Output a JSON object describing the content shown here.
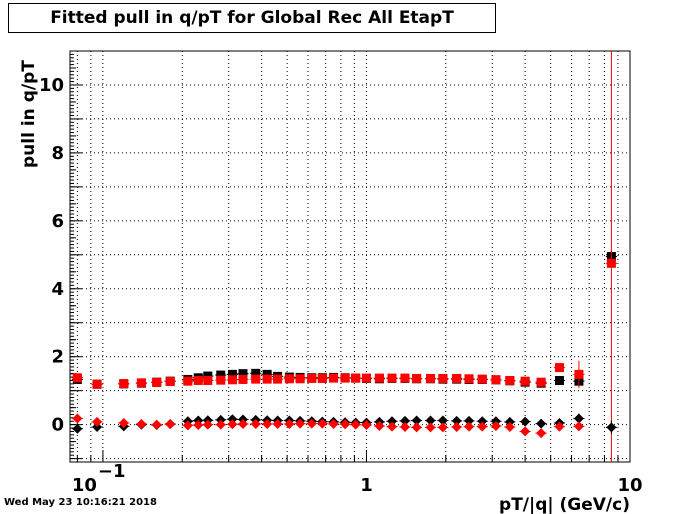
{
  "window": {
    "timestamp": "Wed May 23 10:16:21 2018"
  },
  "chart_data": {
    "type": "scatter",
    "title": "Fitted pull in q/pT for Global Rec All EtapT",
    "xlabel": "pT/|q| (GeV/c)",
    "ylabel": "pull in q/pT",
    "xscale": "log",
    "xlim": [
      0.075,
      10
    ],
    "ylim": [
      -1.1,
      11.0
    ],
    "x_tick_labels": [
      {
        "value": 0.1,
        "base": "10",
        "exp": "−1"
      },
      {
        "value": 1,
        "base": "1",
        "exp": ""
      },
      {
        "value": 10,
        "base": "10",
        "exp": ""
      }
    ],
    "y_ticks": [
      0,
      2,
      4,
      6,
      8,
      10
    ],
    "grid": true,
    "legend": "none",
    "colors": {
      "black_series": "#000000",
      "red_series": "#ff0000"
    },
    "series": [
      {
        "color": "#000000",
        "marker": "square",
        "x": [
          0.08,
          0.095,
          0.12,
          0.14,
          0.16,
          0.18,
          0.21,
          0.23,
          0.25,
          0.28,
          0.31,
          0.34,
          0.38,
          0.42,
          0.46,
          0.51,
          0.56,
          0.62,
          0.68,
          0.75,
          0.83,
          0.91,
          1.0,
          1.12,
          1.25,
          1.4,
          1.55,
          1.75,
          1.95,
          2.2,
          2.45,
          2.75,
          3.1,
          3.5,
          4.0,
          4.6,
          5.4,
          6.4,
          8.5
        ],
        "y": [
          1.33,
          1.19,
          1.2,
          1.22,
          1.25,
          1.28,
          1.33,
          1.38,
          1.43,
          1.46,
          1.48,
          1.5,
          1.51,
          1.48,
          1.42,
          1.4,
          1.39,
          1.38,
          1.38,
          1.39,
          1.38,
          1.37,
          1.36,
          1.35,
          1.36,
          1.36,
          1.35,
          1.35,
          1.34,
          1.34,
          1.33,
          1.33,
          1.32,
          1.29,
          1.25,
          1.22,
          1.3,
          1.28,
          4.95
        ],
        "xerr_frac": 0.05,
        "yerr": [
          0.06,
          0.04,
          0.04,
          0.04,
          0.04,
          0.04,
          0.04,
          0.04,
          0.04,
          0.04,
          0.04,
          0.04,
          0.04,
          0.04,
          0.04,
          0.04,
          0.04,
          0.04,
          0.04,
          0.04,
          0.04,
          0.04,
          0.04,
          0.04,
          0.04,
          0.04,
          0.04,
          0.04,
          0.04,
          0.04,
          0.04,
          0.04,
          0.04,
          0.05,
          0.05,
          0.06,
          0.1,
          0.15,
          0.2
        ]
      },
      {
        "color": "#ff0000",
        "marker": "square",
        "x": [
          0.08,
          0.095,
          0.12,
          0.14,
          0.16,
          0.18,
          0.21,
          0.23,
          0.25,
          0.28,
          0.31,
          0.34,
          0.38,
          0.42,
          0.46,
          0.51,
          0.56,
          0.62,
          0.68,
          0.75,
          0.83,
          0.91,
          1.0,
          1.12,
          1.25,
          1.4,
          1.55,
          1.75,
          1.95,
          2.2,
          2.45,
          2.75,
          3.1,
          3.5,
          4.0,
          4.6,
          5.4,
          6.4,
          8.5
        ],
        "y": [
          1.38,
          1.19,
          1.21,
          1.23,
          1.24,
          1.27,
          1.28,
          1.3,
          1.3,
          1.31,
          1.32,
          1.33,
          1.34,
          1.34,
          1.34,
          1.35,
          1.35,
          1.36,
          1.36,
          1.37,
          1.37,
          1.37,
          1.37,
          1.37,
          1.37,
          1.37,
          1.36,
          1.36,
          1.36,
          1.36,
          1.35,
          1.34,
          1.32,
          1.3,
          1.28,
          1.25,
          1.68,
          1.48,
          4.75
        ],
        "xerr_frac": 0.05,
        "yerr": [
          0.05,
          0.04,
          0.04,
          0.04,
          0.04,
          0.04,
          0.04,
          0.04,
          0.04,
          0.04,
          0.04,
          0.04,
          0.04,
          0.04,
          0.04,
          0.04,
          0.04,
          0.04,
          0.04,
          0.04,
          0.04,
          0.04,
          0.04,
          0.04,
          0.04,
          0.04,
          0.04,
          0.04,
          0.04,
          0.04,
          0.04,
          0.04,
          0.04,
          0.05,
          0.05,
          0.06,
          0.12,
          0.4,
          8.0
        ]
      },
      {
        "color": "#000000",
        "marker": "diamond",
        "x": [
          0.08,
          0.095,
          0.12,
          0.14,
          0.16,
          0.18,
          0.21,
          0.23,
          0.25,
          0.28,
          0.31,
          0.34,
          0.38,
          0.42,
          0.46,
          0.51,
          0.56,
          0.62,
          0.68,
          0.75,
          0.83,
          0.91,
          1.0,
          1.12,
          1.25,
          1.4,
          1.55,
          1.75,
          1.95,
          2.2,
          2.45,
          2.75,
          3.1,
          3.5,
          4.0,
          4.6,
          5.4,
          6.4,
          8.5
        ],
        "y": [
          -0.12,
          -0.07,
          -0.05,
          0.0,
          -0.01,
          0.02,
          0.1,
          0.12,
          0.13,
          0.14,
          0.16,
          0.15,
          0.14,
          0.13,
          0.12,
          0.12,
          0.11,
          0.1,
          0.09,
          0.08,
          0.07,
          0.06,
          0.06,
          0.08,
          0.1,
          0.11,
          0.12,
          0.12,
          0.12,
          0.11,
          0.11,
          0.1,
          0.1,
          0.08,
          0.09,
          0.03,
          0.05,
          0.18,
          -0.08
        ],
        "xerr_frac": 0.05,
        "yerr": [
          0.03,
          0.03,
          0.03,
          0.03,
          0.03,
          0.03,
          0.03,
          0.03,
          0.03,
          0.03,
          0.03,
          0.03,
          0.03,
          0.03,
          0.03,
          0.03,
          0.03,
          0.03,
          0.03,
          0.03,
          0.03,
          0.03,
          0.03,
          0.03,
          0.03,
          0.03,
          0.03,
          0.03,
          0.03,
          0.03,
          0.03,
          0.03,
          0.03,
          0.04,
          0.04,
          0.05,
          0.08,
          0.15,
          0.2
        ]
      },
      {
        "color": "#ff0000",
        "marker": "diamond",
        "x": [
          0.08,
          0.095,
          0.12,
          0.14,
          0.16,
          0.18,
          0.21,
          0.23,
          0.25,
          0.28,
          0.31,
          0.34,
          0.38,
          0.42,
          0.46,
          0.51,
          0.56,
          0.62,
          0.68,
          0.75,
          0.83,
          0.91,
          1.0,
          1.12,
          1.25,
          1.4,
          1.55,
          1.75,
          1.95,
          2.2,
          2.45,
          2.75,
          3.1,
          3.5,
          4.0,
          4.6,
          5.4,
          6.4
        ],
        "y": [
          0.18,
          0.08,
          0.05,
          0.02,
          0.0,
          0.01,
          -0.02,
          -0.01,
          0.0,
          0.0,
          0.01,
          0.02,
          0.02,
          0.02,
          0.02,
          0.02,
          0.03,
          0.03,
          0.03,
          0.02,
          0.01,
          0.0,
          -0.01,
          -0.04,
          -0.06,
          -0.07,
          -0.08,
          -0.08,
          -0.08,
          -0.07,
          -0.06,
          -0.06,
          -0.04,
          -0.07,
          -0.2,
          -0.25,
          -0.06,
          -0.05
        ],
        "xerr_frac": 0.05,
        "yerr": [
          0.03,
          0.03,
          0.03,
          0.03,
          0.03,
          0.03,
          0.03,
          0.03,
          0.03,
          0.03,
          0.03,
          0.03,
          0.03,
          0.03,
          0.03,
          0.03,
          0.03,
          0.03,
          0.03,
          0.03,
          0.03,
          0.03,
          0.03,
          0.03,
          0.03,
          0.03,
          0.03,
          0.03,
          0.03,
          0.03,
          0.03,
          0.03,
          0.03,
          0.04,
          0.05,
          0.06,
          0.1,
          0.12
        ]
      }
    ]
  }
}
